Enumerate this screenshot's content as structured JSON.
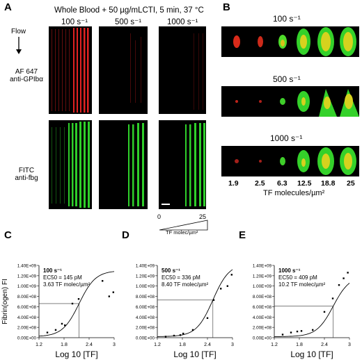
{
  "panel_labels": {
    "A": "A",
    "B": "B",
    "C": "C",
    "D": "D",
    "E": "E"
  },
  "panelA": {
    "header": "Whole Blood + 50 µg/mLCTI, 5 min, 37 °C",
    "shear_rates": [
      "100 s⁻¹",
      "500 s⁻¹",
      "1000 s⁻¹"
    ],
    "flow_label": "Flow",
    "row1_label": [
      "AF 647",
      "anti-GPIbα"
    ],
    "row2_label": [
      "FITC",
      "anti-fbg"
    ],
    "gradient": {
      "min": "0",
      "max": "25",
      "label": "TF molec/µm²"
    },
    "colors": {
      "red": "#cc1b1b",
      "green": "#2fcf2a"
    }
  },
  "panelB": {
    "rows": [
      "100 s⁻¹",
      "500 s⁻¹",
      "1000 s⁻¹"
    ],
    "tf_values": [
      "1.9",
      "2.5",
      "6.3",
      "12.5",
      "18.8",
      "25"
    ],
    "xlabel": "TF molecules/µm²"
  },
  "chart_data": [
    {
      "panel": "C",
      "type": "scatter",
      "annotation": [
        "100 s⁻¹",
        "EC50 = 145 pM",
        "3.63 TF molec/µm²"
      ],
      "xlabel": "Log 10 [TF]",
      "ylabel": "Fibrin(ogen) FI",
      "xlim": [
        1.2,
        3.0
      ],
      "ylim": [
        0,
        1400000000.0
      ],
      "xticks": [
        "1.2",
        "1.8",
        "2.4",
        "3"
      ],
      "yticks": [
        "0.00E+00",
        "2.00E+08",
        "4.00E+08",
        "6.00E+08",
        "8.00E+08",
        "1.00E+09",
        "1.20E+09",
        "1.40E+09"
      ],
      "x": [
        1.4,
        1.6,
        1.75,
        1.82,
        2.0,
        2.15,
        2.72,
        2.88,
        2.98
      ],
      "y": [
        100000000.0,
        150000000.0,
        270000000.0,
        240000000.0,
        660000000.0,
        750000000.0,
        1100000000.0,
        800000000.0,
        880000000.0
      ],
      "ec50_log": 2.16,
      "half_max": 660000000.0
    },
    {
      "panel": "D",
      "type": "scatter",
      "annotation": [
        "500 s⁻¹",
        "EC50 = 336 pM",
        "8.40 TF molec/µm²"
      ],
      "xlabel": "Log 10 [TF]",
      "ylabel": "",
      "xlim": [
        1.2,
        3.0
      ],
      "ylim": [
        0,
        1400000000.0
      ],
      "xticks": [
        "1.2",
        "1.8",
        "2.4",
        "3"
      ],
      "yticks": [
        "0.00E+00",
        "2.00E+08",
        "4.00E+08",
        "6.00E+08",
        "8.00E+08",
        "1.00E+09",
        "1.20E+09",
        "1.40E+09"
      ],
      "x": [
        1.4,
        1.6,
        1.75,
        1.82,
        2.05,
        2.4,
        2.55,
        2.72,
        2.88,
        2.98
      ],
      "y": [
        20000000.0,
        40000000.0,
        50000000.0,
        80000000.0,
        150000000.0,
        380000000.0,
        730000000.0,
        950000000.0,
        1000000000.0,
        1220000000.0
      ],
      "ec50_log": 2.53,
      "half_max": 730000000.0
    },
    {
      "panel": "E",
      "type": "scatter",
      "annotation": [
        "1000 s⁻¹",
        "EC50 = 409 pM",
        "10.2 TF molec/µm²"
      ],
      "xlabel": "Log 10 [TF]",
      "ylabel": "",
      "xlim": [
        1.2,
        3.0
      ],
      "ylim": [
        0,
        1400000000.0
      ],
      "xticks": [
        "1.2",
        "1.8",
        "2.4",
        "3"
      ],
      "yticks": [
        "0.00E+00",
        "2.00E+08",
        "4.00E+08",
        "6.00E+08",
        "8.00E+08",
        "1.00E+09",
        "1.20E+09",
        "1.40E+09"
      ],
      "x": [
        1.4,
        1.6,
        1.75,
        1.85,
        2.12,
        2.4,
        2.6,
        2.75,
        2.86,
        2.96
      ],
      "y": [
        60000000.0,
        100000000.0,
        120000000.0,
        130000000.0,
        150000000.0,
        500000000.0,
        760000000.0,
        1020000000.0,
        1150000000.0,
        1260000000.0
      ],
      "ec50_log": 2.61,
      "half_max": 610000000.0
    }
  ]
}
